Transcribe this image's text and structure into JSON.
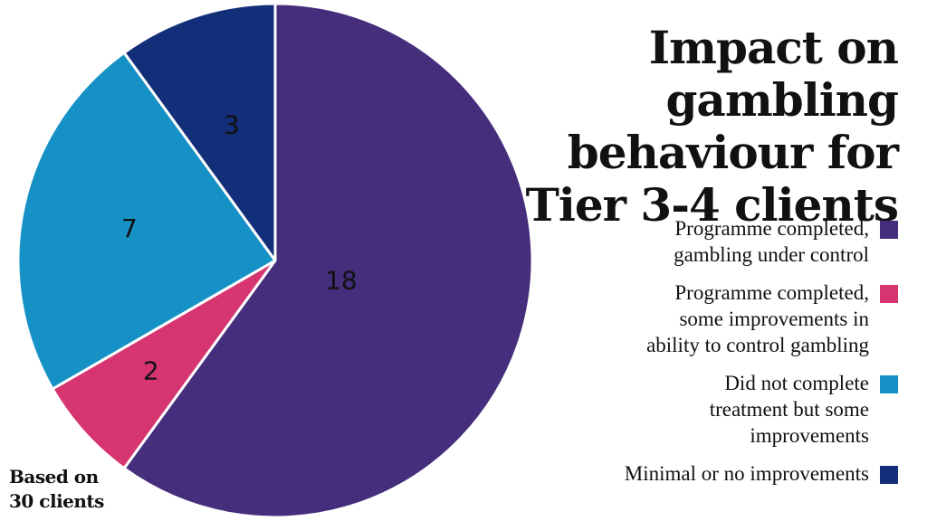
{
  "chart_data": {
    "type": "pie",
    "title_lines": [
      "Impact on gambling",
      "behaviour for",
      "Tier 3-4 clients"
    ],
    "slices": [
      {
        "label_lines": [
          "Programme completed,",
          "gambling under control"
        ],
        "value": 18,
        "color": "#452e7c"
      },
      {
        "label_lines": [
          "Programme completed,",
          "some improvements in",
          "ability to control gambling"
        ],
        "value": 2,
        "color": "#d63570"
      },
      {
        "label_lines": [
          "Did not complete",
          "treatment but some",
          "improvements"
        ],
        "value": 7,
        "color": "#1691c6"
      },
      {
        "label_lines": [
          "Minimal or no improvements"
        ],
        "value": 3,
        "color": "#142f7a"
      }
    ],
    "legend_position": "right",
    "annotation_lines": [
      "Based on",
      "30 clients"
    ]
  }
}
